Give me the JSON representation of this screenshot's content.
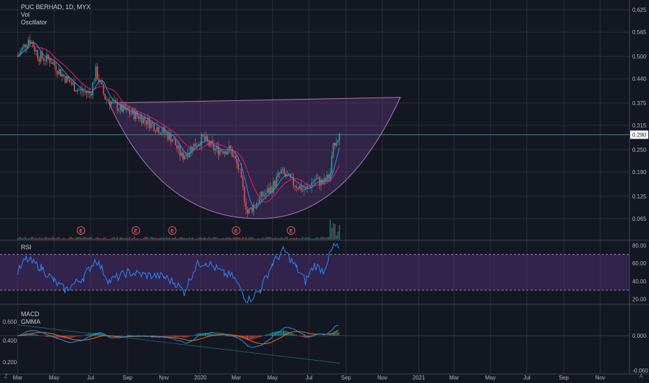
{
  "legend": {
    "title": "PUC BERHAD, 1D, MYX",
    "line2": "Vol",
    "line3": "Oscillator"
  },
  "rsi_label": "RSI",
  "macd_label": "MACD",
  "gmma_label": "GMMA",
  "corner_left": "Z",
  "corner_right": "A",
  "colors": {
    "background": "#131722",
    "grid": "#2a2e39",
    "up": "#26a69a",
    "down": "#ef5350",
    "cup_fill": "#6a3d8a",
    "cup_stroke": "#b07ab8",
    "price_line": "#26a69a",
    "ma_blue": "#2196f3",
    "ma_red": "#e91e63",
    "rsi_line": "#2f80ed",
    "rsi_band": "#4a2d6e"
  },
  "chart_data": [
    {
      "type": "candlestick",
      "title": "PUC BERHAD, 1D, MYX",
      "x_ticks": [
        "Mar",
        "May",
        "Jul",
        "Sep",
        "Nov",
        "2020",
        "Mar",
        "May",
        "Jul",
        "Sep",
        "Nov",
        "2021",
        "Mar",
        "May",
        "Jul",
        "Sep",
        "Nov",
        "A"
      ],
      "y_ticks": [
        "0.625",
        "0.565",
        "0.500",
        "0.440",
        "0.375",
        "0.315",
        "0.250",
        "0.190",
        "0.125",
        "0.065"
      ],
      "ylim": [
        0.02,
        0.64
      ],
      "last_price_label": "0.290",
      "last_price": 0.29,
      "price_path": [
        [
          "2019-03-01",
          0.5
        ],
        [
          "2019-03-20",
          0.55
        ],
        [
          "2019-04-05",
          0.5
        ],
        [
          "2019-04-25",
          0.49
        ],
        [
          "2019-05-15",
          0.45
        ],
        [
          "2019-06-10",
          0.41
        ],
        [
          "2019-07-01",
          0.4
        ],
        [
          "2019-07-10",
          0.46
        ],
        [
          "2019-07-25",
          0.39
        ],
        [
          "2019-08-20",
          0.36
        ],
        [
          "2019-09-20",
          0.34
        ],
        [
          "2019-10-20",
          0.31
        ],
        [
          "2019-11-15",
          0.28
        ],
        [
          "2019-12-01",
          0.23
        ],
        [
          "2019-12-20",
          0.26
        ],
        [
          "2020-01-05",
          0.28
        ],
        [
          "2020-01-25",
          0.25
        ],
        [
          "2020-02-20",
          0.25
        ],
        [
          "2020-03-05",
          0.2
        ],
        [
          "2020-03-20",
          0.08
        ],
        [
          "2020-04-10",
          0.12
        ],
        [
          "2020-05-01",
          0.15
        ],
        [
          "2020-05-15",
          0.19
        ],
        [
          "2020-06-05",
          0.16
        ],
        [
          "2020-06-25",
          0.14
        ],
        [
          "2020-07-10",
          0.17
        ],
        [
          "2020-07-25",
          0.16
        ],
        [
          "2020-08-05",
          0.18
        ],
        [
          "2020-08-12",
          0.27
        ],
        [
          "2020-08-22",
          0.29
        ]
      ],
      "cup": {
        "left_top": [
          "2019-08-01",
          0.375
        ],
        "bottom": [
          "2020-04-10",
          0.065
        ],
        "right_top": [
          "2020-12-01",
          0.39
        ]
      },
      "earnings_markers": [
        "2019-06-15",
        "2019-09-15",
        "2019-11-15",
        "2020-03-01",
        "2020-06-01"
      ],
      "earnings_label": "E"
    },
    {
      "type": "line",
      "title": "RSI",
      "y_ticks": [
        "80.00",
        "60.00",
        "40.00",
        "20.00"
      ],
      "ylim": [
        15,
        85
      ],
      "bands": [
        30,
        70
      ],
      "values_path": [
        [
          "2019-03-01",
          50
        ],
        [
          "2019-03-15",
          65
        ],
        [
          "2019-04-10",
          55
        ],
        [
          "2019-05-01",
          40
        ],
        [
          "2019-05-20",
          30
        ],
        [
          "2019-06-20",
          45
        ],
        [
          "2019-07-10",
          65
        ],
        [
          "2019-08-01",
          40
        ],
        [
          "2019-09-01",
          50
        ],
        [
          "2019-10-01",
          47
        ],
        [
          "2019-11-01",
          45
        ],
        [
          "2019-11-20",
          38
        ],
        [
          "2019-12-05",
          28
        ],
        [
          "2019-12-25",
          58
        ],
        [
          "2020-01-10",
          62
        ],
        [
          "2020-02-10",
          48
        ],
        [
          "2020-02-25",
          45
        ],
        [
          "2020-03-20",
          18
        ],
        [
          "2020-04-10",
          30
        ],
        [
          "2020-05-01",
          60
        ],
        [
          "2020-05-20",
          75
        ],
        [
          "2020-06-10",
          55
        ],
        [
          "2020-06-25",
          40
        ],
        [
          "2020-07-10",
          58
        ],
        [
          "2020-07-25",
          52
        ],
        [
          "2020-08-12",
          80
        ],
        [
          "2020-08-22",
          75
        ]
      ]
    },
    {
      "type": "bar",
      "title": "MACD",
      "y_ticks_left": [
        "0.600",
        "0.400",
        "0.200"
      ],
      "y_ticks_right": [
        "0.000",
        "-0.060"
      ],
      "gmma_left": {
        "from": [
          "2019-03-01",
          0.59
        ],
        "to": [
          "2020-08-22",
          0.21
        ]
      }
    }
  ]
}
